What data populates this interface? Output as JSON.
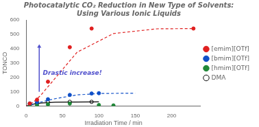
{
  "chart_data": {
    "type": "scatter",
    "title": "Photocatalytic CO₂ Reduction in New Type of Solvents:",
    "subtitle": "Using Various Ionic Liquids",
    "x_label": "Irradiation Time / min",
    "y_label": "TONCO",
    "series": [
      {
        "name": "[emim][OTf]",
        "color": "#e02020",
        "type": "scatter",
        "marker": "circle",
        "x": [
          5,
          15,
          30,
          60,
          90,
          230
        ],
        "values": [
          18,
          45,
          170,
          410,
          540,
          540
        ]
      },
      {
        "name": "[bmim][OTf]",
        "color": "#1050c8",
        "type": "scatter",
        "marker": "circle",
        "x": [
          5,
          15,
          30,
          60,
          90,
          100
        ],
        "values": [
          18,
          28,
          48,
          78,
          88,
          90
        ]
      },
      {
        "name": "[hmim][OTf]",
        "color": "#208838",
        "type": "scatter",
        "marker": "circle",
        "x": [
          5,
          15,
          30,
          60,
          100,
          120
        ],
        "values": [
          5,
          8,
          12,
          18,
          8,
          5
        ]
      },
      {
        "name": "DMA",
        "color": "#000000",
        "type": "scatter",
        "marker": "hollow",
        "x": [
          5,
          15,
          30,
          60,
          90
        ],
        "values": [
          18,
          23,
          28,
          30,
          30
        ]
      },
      {
        "color": "#e02020",
        "type": "line",
        "line_style": "dashed",
        "x": [
          0,
          10,
          20,
          40,
          70,
          120,
          180,
          230
        ],
        "values": [
          0,
          28,
          75,
          195,
          375,
          505,
          538,
          540
        ]
      },
      {
        "color": "#1050c8",
        "type": "line",
        "line_style": "dashed",
        "x": [
          0,
          10,
          20,
          40,
          70,
          100,
          150
        ],
        "values": [
          0,
          14,
          28,
          52,
          78,
          88,
          90
        ]
      },
      {
        "color": "#000000",
        "type": "line",
        "line_style": "solid",
        "x": [
          0,
          10,
          20,
          40,
          70,
          100
        ],
        "values": [
          0,
          14,
          21,
          27,
          29,
          30
        ]
      }
    ],
    "xlim": [
      0,
      240
    ],
    "xticks": [
      0,
      50,
      100,
      150,
      200
    ],
    "ylim": [
      0,
      600
    ],
    "yticks": [
      0,
      100,
      200,
      300,
      400,
      500,
      600
    ],
    "grid": false,
    "legend": "right",
    "annotations": [
      {
        "text": "Drastic increase!",
        "x": 23,
        "y": 230,
        "arrow": {
          "x": 18,
          "y_from": 100,
          "y_to": 430
        }
      }
    ]
  }
}
